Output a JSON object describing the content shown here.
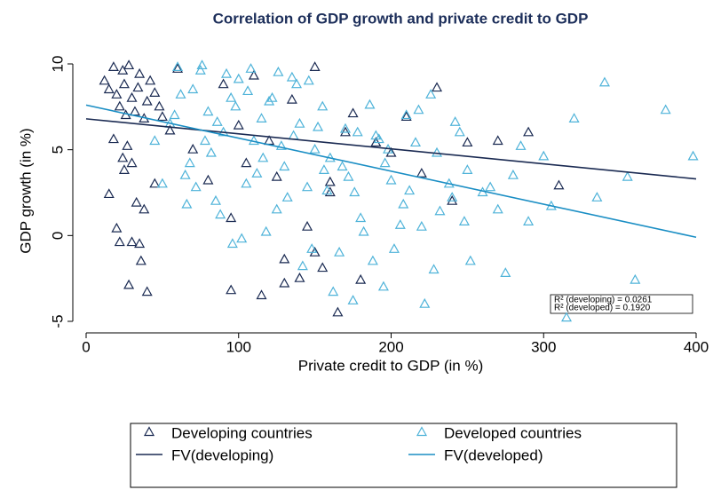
{
  "chart_data": {
    "type": "scatter",
    "title": "Correlation of GDP growth and private credit to GDP",
    "x_label": "Private credit to GDP (in %)",
    "y_label": "GDP growth (in %)",
    "xlim": [
      0,
      400
    ],
    "xticks": [
      0,
      100,
      200,
      300,
      400
    ],
    "ylim": [
      -5,
      10
    ],
    "yticks": [
      -5,
      0,
      5,
      10
    ],
    "annotations": [
      "R² (developing) = 0.0261",
      "R² (developed) = 0.1920"
    ],
    "series": [
      {
        "name": "Developing countries",
        "type": "scatter",
        "color": "#1a2a52",
        "x": [
          12,
          15,
          18,
          20,
          22,
          24,
          25,
          26,
          28,
          30,
          32,
          34,
          35,
          38,
          40,
          42,
          45,
          48,
          50,
          20,
          22,
          28,
          30,
          33,
          36,
          25,
          27,
          15,
          18,
          24,
          35,
          40,
          45,
          55,
          60,
          70,
          80,
          90,
          95,
          100,
          105,
          110,
          115,
          120,
          125,
          130,
          135,
          140,
          145,
          150,
          155,
          160,
          165,
          170,
          175,
          180,
          190,
          200,
          210,
          220,
          230,
          240,
          250,
          270,
          290,
          310,
          130,
          150,
          160,
          95,
          30,
          38
        ],
        "values": [
          9.0,
          8.5,
          9.8,
          8.2,
          7.5,
          9.6,
          8.8,
          7.0,
          9.9,
          8.0,
          7.2,
          8.6,
          9.4,
          6.8,
          7.8,
          9.0,
          8.3,
          7.5,
          6.9,
          0.4,
          -0.4,
          -2.9,
          4.2,
          1.9,
          -1.5,
          3.8,
          5.2,
          2.4,
          5.6,
          4.5,
          -0.5,
          -3.3,
          3.0,
          6.1,
          9.7,
          5.0,
          3.2,
          8.8,
          -3.2,
          6.4,
          4.2,
          9.3,
          -3.5,
          5.5,
          3.4,
          -1.4,
          7.9,
          -2.5,
          0.5,
          9.8,
          -1.9,
          2.5,
          -4.5,
          6.0,
          7.1,
          -2.6,
          5.4,
          4.8,
          6.9,
          3.6,
          8.6,
          2.0,
          5.4,
          5.5,
          6.0,
          2.9,
          -2.8,
          -1.0,
          3.1,
          1.0,
          -0.4,
          1.5
        ]
      },
      {
        "name": "Developed countries",
        "type": "scatter",
        "color": "#4fb3d9",
        "x": [
          60,
          70,
          80,
          90,
          100,
          110,
          120,
          130,
          140,
          150,
          65,
          75,
          85,
          95,
          105,
          115,
          125,
          135,
          145,
          155,
          160,
          170,
          180,
          190,
          200,
          210,
          220,
          230,
          240,
          250,
          55,
          68,
          78,
          88,
          98,
          108,
          118,
          128,
          138,
          148,
          158,
          168,
          178,
          188,
          198,
          208,
          218,
          228,
          238,
          248,
          62,
          72,
          82,
          92,
          102,
          112,
          122,
          132,
          142,
          152,
          162,
          172,
          182,
          192,
          202,
          212,
          222,
          232,
          242,
          252,
          260,
          270,
          280,
          290,
          300,
          320,
          340,
          360,
          380,
          398,
          45,
          50,
          58,
          66,
          76,
          86,
          96,
          106,
          116,
          126,
          136,
          146,
          156,
          166,
          176,
          186,
          196,
          206,
          216,
          226,
          265,
          285,
          305,
          335,
          315,
          355,
          275,
          245,
          195,
          175
        ],
        "values": [
          9.8,
          8.5,
          7.2,
          6.0,
          9.1,
          5.5,
          7.8,
          4.0,
          6.5,
          5.0,
          3.5,
          9.6,
          2.0,
          8.0,
          3.0,
          6.8,
          1.5,
          9.2,
          2.8,
          7.5,
          4.5,
          6.2,
          1.0,
          5.8,
          3.2,
          7.0,
          0.5,
          4.8,
          2.2,
          3.8,
          6.5,
          4.2,
          5.5,
          1.2,
          7.5,
          9.7,
          0.2,
          5.2,
          8.8,
          -0.8,
          2.6,
          4.0,
          6.0,
          -1.5,
          5.0,
          1.8,
          7.3,
          -2.0,
          3.0,
          0.8,
          8.2,
          2.8,
          4.8,
          9.4,
          -0.2,
          3.6,
          8.0,
          2.2,
          -1.8,
          6.3,
          -3.3,
          3.4,
          0.2,
          5.6,
          -0.8,
          2.6,
          -4.0,
          1.4,
          6.6,
          -1.5,
          2.5,
          1.5,
          3.5,
          0.8,
          4.6,
          6.8,
          8.9,
          -2.6,
          7.3,
          4.6,
          5.5,
          3.0,
          7.0,
          1.8,
          9.9,
          6.6,
          -0.5,
          8.4,
          4.5,
          9.5,
          5.8,
          9.0,
          3.8,
          -1.0,
          2.5,
          7.6,
          4.2,
          0.6,
          5.4,
          8.2,
          2.8,
          5.2,
          1.7,
          2.2,
          -4.8,
          3.4,
          -2.2,
          6.0,
          -3.0,
          -3.8
        ]
      },
      {
        "name": "FV(developing)",
        "type": "line",
        "color": "#1a2a52",
        "x": [
          0,
          400
        ],
        "values": [
          6.8,
          3.3
        ]
      },
      {
        "name": "FV(developed)",
        "type": "line",
        "color": "#1a8ec4",
        "x": [
          0,
          400
        ],
        "values": [
          7.6,
          -0.1
        ]
      }
    ]
  }
}
